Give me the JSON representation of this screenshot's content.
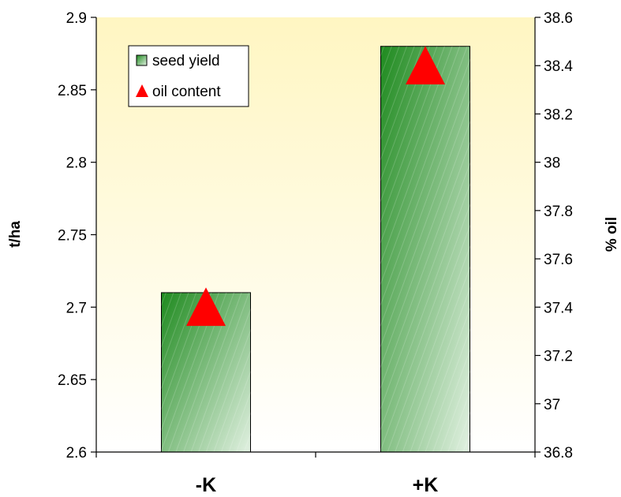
{
  "chart_data": {
    "type": "bar",
    "categories": [
      "-K",
      "+K"
    ],
    "series": [
      {
        "name": "seed yield",
        "axis": "left",
        "mark": "bar",
        "values": [
          2.71,
          2.88
        ]
      },
      {
        "name": "oil content",
        "axis": "right",
        "mark": "triangle",
        "values": [
          37.4,
          38.4
        ]
      }
    ],
    "ylabel": "t/ha",
    "ylabel_right": "% oil",
    "ylim": [
      2.6,
      2.9
    ],
    "ylim_right": [
      36.8,
      38.6
    ],
    "yticks": [
      "2.6",
      "2.65",
      "2.7",
      "2.75",
      "2.8",
      "2.85",
      "2.9"
    ],
    "yticks_right": [
      "36.8",
      "37",
      "37.2",
      "37.4",
      "37.6",
      "37.8",
      "38",
      "38.2",
      "38.4",
      "38.6"
    ],
    "legend_position": "top-left",
    "colors": {
      "bar_dark": "#1e8a1e",
      "bar_light": "#e2f1e2",
      "marker": "#ff0000",
      "plot_bg_top": "#fff6c2",
      "plot_bg_bottom": "#ffffff"
    }
  }
}
